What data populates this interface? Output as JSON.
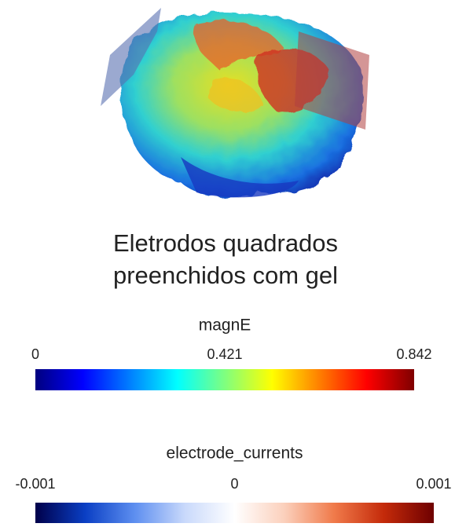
{
  "caption": [
    "Eletrodos quadrados",
    "preenchidos com gel"
  ],
  "colorbars": [
    {
      "title": "magnE",
      "lim": [
        0,
        0.842
      ],
      "ticks": [
        0,
        0.421,
        0.842
      ],
      "colors": [
        "#00007f",
        "#0000ff",
        "#007fff",
        "#00ffff",
        "#7fff7f",
        "#ffff00",
        "#ff7f00",
        "#ff0000",
        "#7f0000"
      ]
    },
    {
      "title": "electrode_currents",
      "lim": [
        -0.001,
        0.001
      ],
      "ticks": [
        -0.001,
        0,
        0.001
      ],
      "colors": [
        "#00004a",
        "#0a3fc4",
        "#5e8ff0",
        "#c9d9fb",
        "#ffffff",
        "#fbd0bc",
        "#f07a4a",
        "#c42a0a",
        "#6e0000"
      ]
    }
  ]
}
